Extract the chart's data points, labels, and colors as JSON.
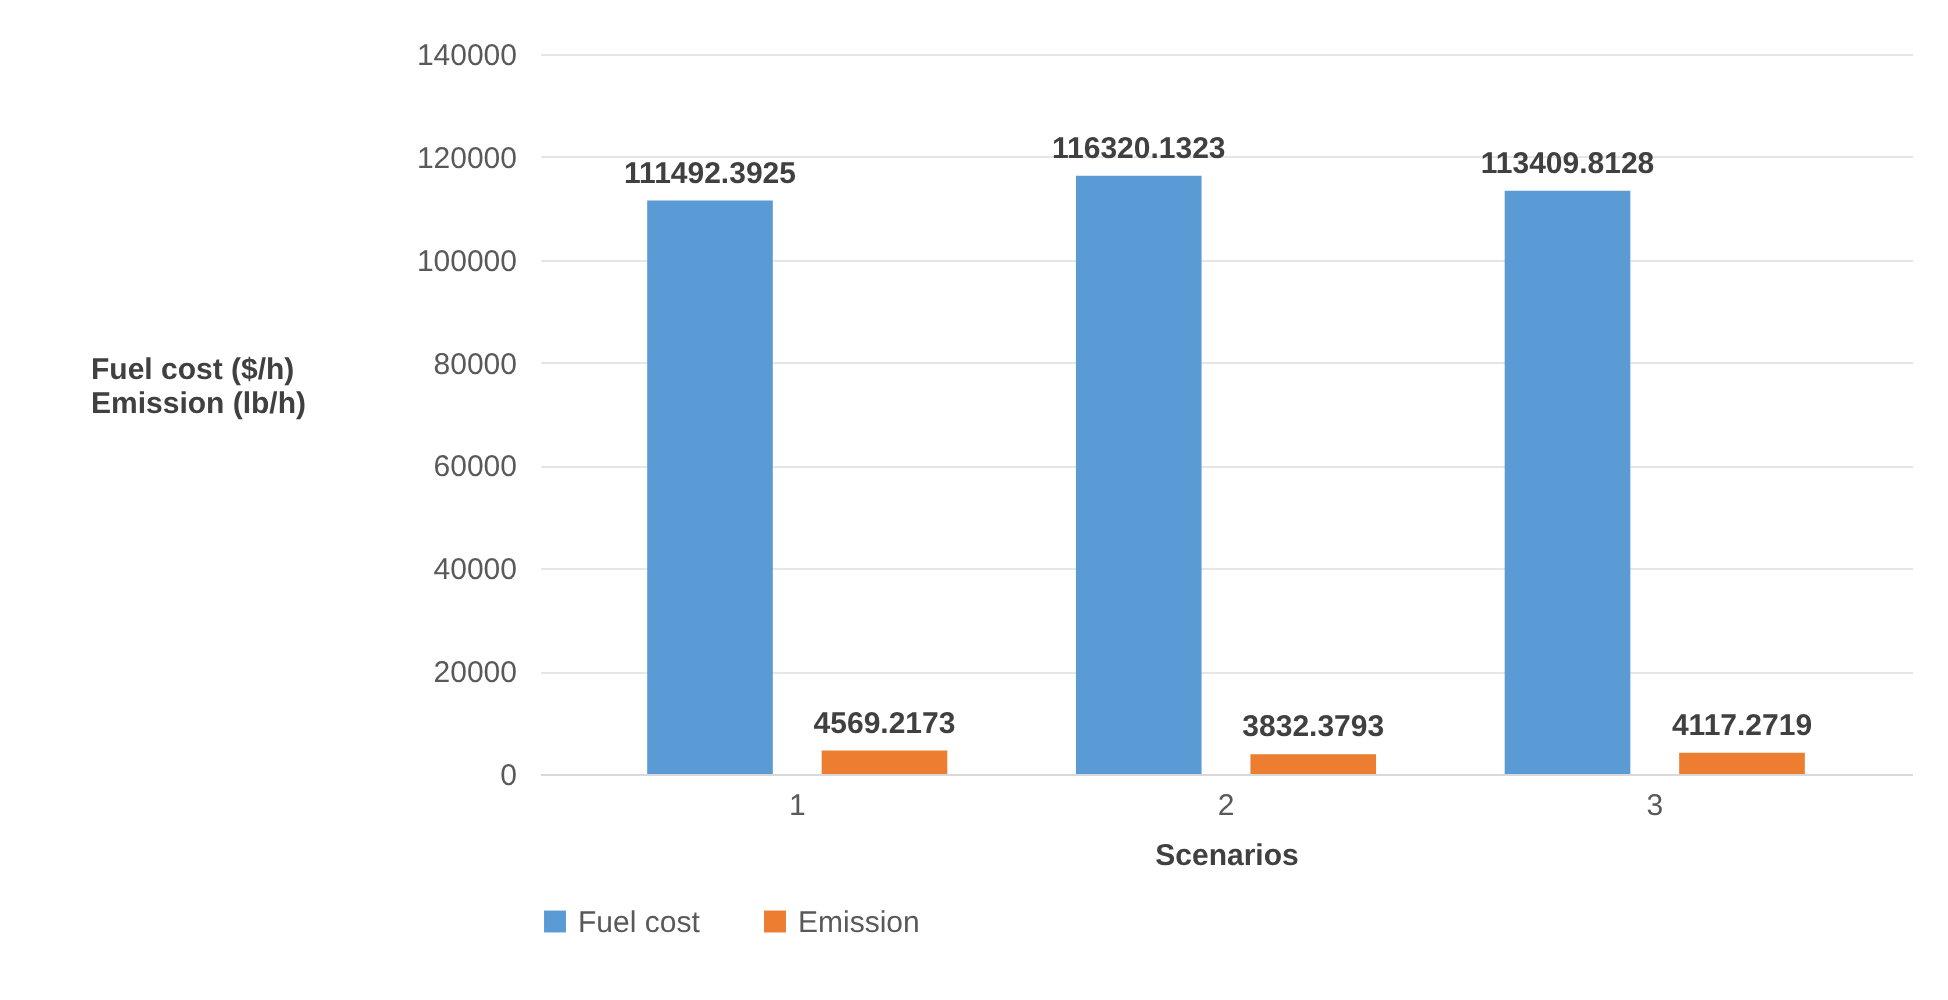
{
  "chart_data": {
    "type": "bar",
    "xlabel": "Scenarios",
    "ylabel": "Fuel cost ($/h)\nEmission (lb/h)",
    "categories": [
      "1",
      "2",
      "3"
    ],
    "series": [
      {
        "name": "Fuel cost",
        "color": "#5b9bd5",
        "values": [
          111492.3925,
          116320.1323,
          113409.8128
        ]
      },
      {
        "name": "Emission",
        "color": "#ed7d31",
        "values": [
          4569.2173,
          3832.3793,
          4117.2719
        ]
      }
    ],
    "ylim": [
      0,
      140000
    ],
    "yticks": [
      0,
      20000,
      40000,
      60000,
      80000,
      100000,
      120000,
      140000
    ],
    "grid": "y",
    "legend": "bottom",
    "data_labels": true
  }
}
